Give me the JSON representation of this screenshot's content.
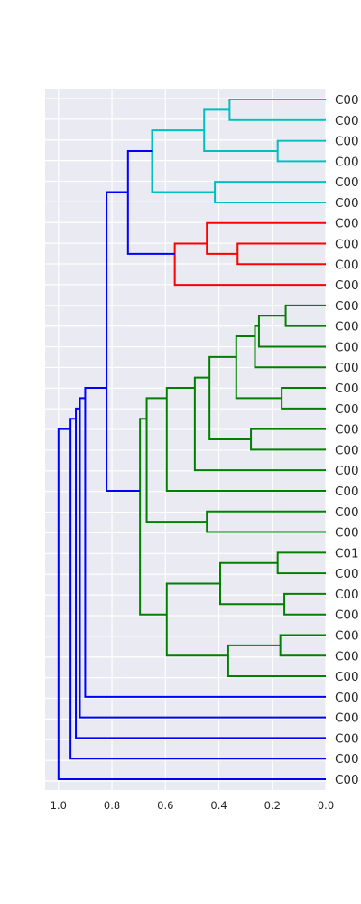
{
  "chart_data": {
    "type": "dendrogram",
    "orientation": "left",
    "xlim": [
      1.05,
      0.0
    ],
    "xticks": [
      1.0,
      0.8,
      0.6,
      0.4,
      0.2,
      0.0
    ],
    "xtick_labels": [
      "1.0",
      "0.8",
      "0.6",
      "0.4",
      "0.2",
      "0.0"
    ],
    "grid": true,
    "colors": {
      "background": "#eaeaf2",
      "grid": "#ffffff",
      "cyan": "#00bfbf",
      "red": "#ff0000",
      "green": "#008000",
      "blue": "#0000ff"
    },
    "leaf_labels": [
      "C00",
      "C00",
      "C00",
      "C00",
      "C00",
      "C00",
      "C00",
      "C00",
      "C00",
      "C00",
      "C00",
      "C00",
      "C00",
      "C00",
      "C00",
      "C00",
      "C00",
      "C00",
      "C00",
      "C00",
      "C00",
      "C00",
      "C01",
      "C00",
      "C00",
      "C00",
      "C00",
      "C00",
      "C00",
      "C00",
      "C00",
      "C00",
      "C00",
      "C00"
    ],
    "links": [
      {
        "a": [
          0
        ],
        "b": [
          1
        ],
        "h": 0.36,
        "color": "cyan"
      },
      {
        "a": [
          2
        ],
        "b": [
          3
        ],
        "h": 0.18,
        "color": "cyan"
      },
      {
        "a": [
          0,
          1
        ],
        "b": [
          2,
          3
        ],
        "h": 0.455,
        "color": "cyan"
      },
      {
        "a": [
          4
        ],
        "b": [
          5
        ],
        "h": 0.415,
        "color": "cyan"
      },
      {
        "a": [
          0,
          3
        ],
        "b": [
          4,
          5
        ],
        "h": 0.65,
        "color": "cyan"
      },
      {
        "a": [
          7
        ],
        "b": [
          8
        ],
        "h": 0.33,
        "color": "red"
      },
      {
        "a": [
          6
        ],
        "b": [
          7,
          8
        ],
        "h": 0.445,
        "color": "red"
      },
      {
        "a": [
          6,
          8
        ],
        "b": [
          9
        ],
        "h": 0.565,
        "color": "red"
      },
      {
        "a": [
          0,
          5
        ],
        "b": [
          6,
          9
        ],
        "h": 0.74,
        "color": "blue"
      },
      {
        "a": [
          10
        ],
        "b": [
          11
        ],
        "h": 0.15,
        "color": "green"
      },
      {
        "a": [
          10,
          11
        ],
        "b": [
          12
        ],
        "h": 0.25,
        "color": "green"
      },
      {
        "a": [
          10,
          12
        ],
        "b": [
          13
        ],
        "h": 0.265,
        "color": "green"
      },
      {
        "a": [
          14
        ],
        "b": [
          15
        ],
        "h": 0.165,
        "color": "green"
      },
      {
        "a": [
          10,
          13
        ],
        "b": [
          14,
          15
        ],
        "h": 0.335,
        "color": "green"
      },
      {
        "a": [
          16
        ],
        "b": [
          17
        ],
        "h": 0.28,
        "color": "green"
      },
      {
        "a": [
          10,
          15
        ],
        "b": [
          16,
          17
        ],
        "h": 0.435,
        "color": "green"
      },
      {
        "a": [
          10,
          17
        ],
        "b": [
          18
        ],
        "h": 0.49,
        "color": "green"
      },
      {
        "a": [
          10,
          18
        ],
        "b": [
          19
        ],
        "h": 0.595,
        "color": "green"
      },
      {
        "a": [
          20
        ],
        "b": [
          21
        ],
        "h": 0.445,
        "color": "green"
      },
      {
        "a": [
          10,
          19
        ],
        "b": [
          20,
          21
        ],
        "h": 0.67,
        "color": "green"
      },
      {
        "a": [
          22
        ],
        "b": [
          23
        ],
        "h": 0.18,
        "color": "green"
      },
      {
        "a": [
          24
        ],
        "b": [
          25
        ],
        "h": 0.155,
        "color": "green"
      },
      {
        "a": [
          22,
          23
        ],
        "b": [
          24,
          25
        ],
        "h": 0.395,
        "color": "green"
      },
      {
        "a": [
          26
        ],
        "b": [
          27
        ],
        "h": 0.17,
        "color": "green"
      },
      {
        "a": [
          26,
          27
        ],
        "b": [
          28
        ],
        "h": 0.365,
        "color": "green"
      },
      {
        "a": [
          22,
          25
        ],
        "b": [
          26,
          28
        ],
        "h": 0.595,
        "color": "green"
      },
      {
        "a": [
          10,
          21
        ],
        "b": [
          22,
          28
        ],
        "h": 0.695,
        "color": "green"
      },
      {
        "a": [
          0,
          9
        ],
        "b": [
          10,
          28
        ],
        "h": 0.82,
        "color": "blue"
      },
      {
        "a": [
          0,
          28
        ],
        "b": [
          29
        ],
        "h": 0.9,
        "color": "blue"
      },
      {
        "a": [
          0,
          29
        ],
        "b": [
          30
        ],
        "h": 0.92,
        "color": "blue"
      },
      {
        "a": [
          0,
          30
        ],
        "b": [
          31
        ],
        "h": 0.935,
        "color": "blue"
      },
      {
        "a": [
          0,
          31
        ],
        "b": [
          32
        ],
        "h": 0.955,
        "color": "blue"
      },
      {
        "a": [
          0,
          32
        ],
        "b": [
          33
        ],
        "h": 1.0,
        "color": "blue"
      }
    ]
  }
}
